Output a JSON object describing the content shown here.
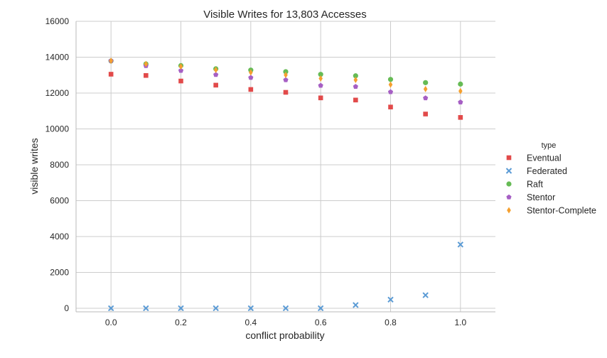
{
  "chart_data": {
    "type": "scatter",
    "title": "Visible Writes for 13,803 Accesses",
    "xlabel": "conflict probability",
    "ylabel": "visible writes",
    "xlim": [
      -0.1,
      1.1
    ],
    "ylim": [
      -200,
      16000
    ],
    "x_ticks": [
      0.0,
      0.2,
      0.4,
      0.6,
      0.8,
      1.0
    ],
    "x_tick_labels": [
      "0.0",
      "0.2",
      "0.4",
      "0.6",
      "0.8",
      "1.0"
    ],
    "y_ticks": [
      0,
      2000,
      4000,
      6000,
      8000,
      10000,
      12000,
      14000,
      16000
    ],
    "y_tick_labels": [
      "0",
      "2000",
      "4000",
      "6000",
      "8000",
      "10000",
      "12000",
      "14000",
      "16000"
    ],
    "grid": true,
    "legend": {
      "title": "type",
      "placement": "right"
    },
    "x": [
      0.0,
      0.1,
      0.2,
      0.3,
      0.4,
      0.5,
      0.6,
      0.7,
      0.8,
      0.9,
      1.0
    ],
    "series": [
      {
        "name": "Eventual",
        "marker": "square",
        "color": "#e24a4a",
        "values": [
          13050,
          12980,
          12670,
          12440,
          12200,
          12040,
          11730,
          11610,
          11220,
          10830,
          10640
        ]
      },
      {
        "name": "Federated",
        "marker": "x",
        "color": "#5b9bd5",
        "values": [
          0,
          0,
          0,
          0,
          0,
          0,
          0,
          180,
          480,
          730,
          3550
        ]
      },
      {
        "name": "Raft",
        "marker": "circle",
        "color": "#66bb55",
        "values": [
          13790,
          13620,
          13530,
          13350,
          13280,
          13190,
          13040,
          12960,
          12760,
          12580,
          12500
        ]
      },
      {
        "name": "Stentor",
        "marker": "pentagon",
        "color": "#a65fc4",
        "values": [
          13800,
          13520,
          13250,
          13020,
          12860,
          12730,
          12420,
          12360,
          12060,
          11720,
          11490
        ]
      },
      {
        "name": "Stentor-Complete",
        "marker": "diamond",
        "color": "#f5a02f",
        "values": [
          13800,
          13620,
          13480,
          13290,
          13150,
          13010,
          12810,
          12730,
          12470,
          12220,
          12110
        ]
      }
    ]
  }
}
